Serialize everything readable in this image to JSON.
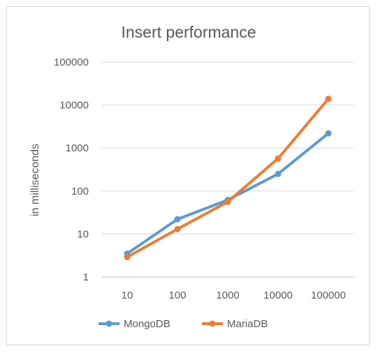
{
  "chart_data": {
    "type": "line",
    "title": "Insert performance",
    "xlabel": "",
    "ylabel": "in milliseconds",
    "categories": [
      "10",
      "100",
      "1000",
      "10000",
      "100000"
    ],
    "y_scale": "log10",
    "ylim": [
      1,
      100000
    ],
    "y_ticks": [
      "1",
      "10",
      "100",
      "1000",
      "10000",
      "100000"
    ],
    "grid": true,
    "legend_position": "bottom",
    "series": [
      {
        "name": "MongoDB",
        "color": "#5b9bd5",
        "values": [
          3.5,
          22,
          62,
          250,
          2200
        ]
      },
      {
        "name": "MariaDB",
        "color": "#ed7d31",
        "values": [
          2.9,
          13,
          56,
          570,
          14000
        ]
      }
    ]
  }
}
